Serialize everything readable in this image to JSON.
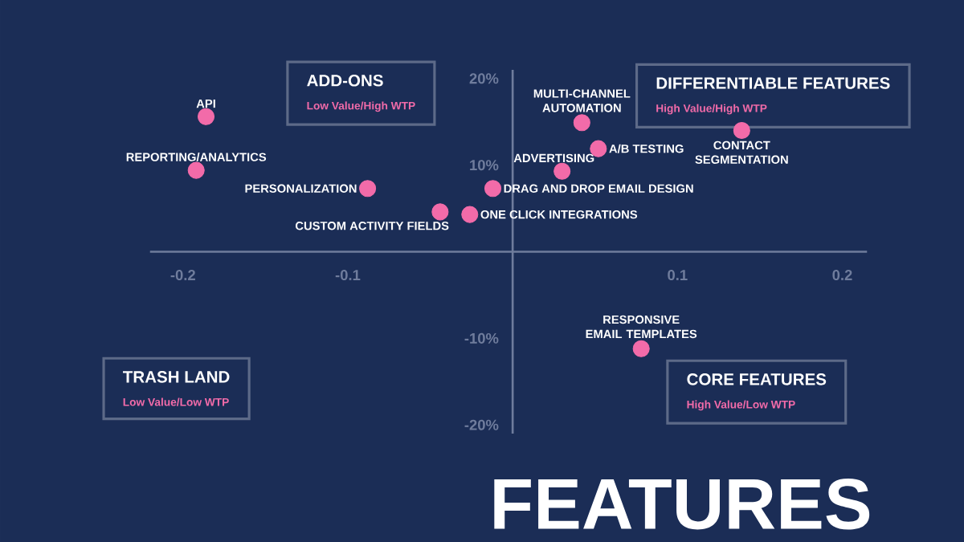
{
  "chart_data": {
    "type": "scatter",
    "title": "FEATURES",
    "marker": "circle",
    "color": "#f26ba9",
    "x": [
      -0.186,
      -0.192,
      -0.088,
      -0.044,
      -0.026,
      -0.012,
      0.03,
      0.052,
      0.042,
      0.139,
      0.078
    ],
    "values": [
      15.6,
      9.4,
      7.3,
      4.6,
      4.3,
      7.3,
      9.3,
      11.9,
      14.9,
      14.0,
      -11.2
    ],
    "xlim": [
      -0.22,
      0.215
    ],
    "ylim": [
      -21,
      21
    ],
    "xticks": [
      -0.2,
      -0.1,
      0.1,
      0.2
    ],
    "yticks": [
      {
        "value": -20,
        "label": "-20%"
      },
      {
        "value": -10,
        "label": "-10%"
      },
      {
        "value": 10,
        "label": "10%"
      },
      {
        "value": 20,
        "label": "20%"
      }
    ],
    "annotations": [
      "ADD-ONS",
      "Low Value/High WTP",
      "DIFFERENTIABLE FEATURES",
      "High Value/High WTP",
      "TRASH LAND",
      "Low Value/Low WTP",
      "CORE FEATURES",
      "High Value/Low WTP",
      {
        "text": "API",
        "x": -0.186,
        "y": 15.6
      },
      {
        "text": "REPORTING/ANALYTICS",
        "x": -0.192,
        "y": 9.4
      },
      {
        "text": "PERSONALIZATION",
        "x": -0.088,
        "y": 7.3
      },
      {
        "text": "CUSTOM ACTIVITY FIELDS",
        "x": -0.044,
        "y": 4.6
      },
      {
        "text": "ONE CLICK INTEGRATIONS",
        "x": -0.026,
        "y": 4.3
      },
      {
        "text": "DRAG AND DROP EMAIL DESIGN",
        "x": -0.012,
        "y": 7.3
      },
      {
        "text": "ADVERTISING",
        "x": 0.03,
        "y": 9.3
      },
      {
        "text": "A/B TESTING",
        "x": 0.052,
        "y": 11.9
      },
      {
        "text": "MULTI-CHANNEL AUTOMATION",
        "x": 0.042,
        "y": 14.9
      },
      {
        "text": "CONTACT SEGMENTATION",
        "x": 0.139,
        "y": 14.0
      },
      {
        "text": "RESPONSIVE EMAIL TEMPLATES",
        "x": 0.078,
        "y": -11.2
      }
    ]
  }
}
